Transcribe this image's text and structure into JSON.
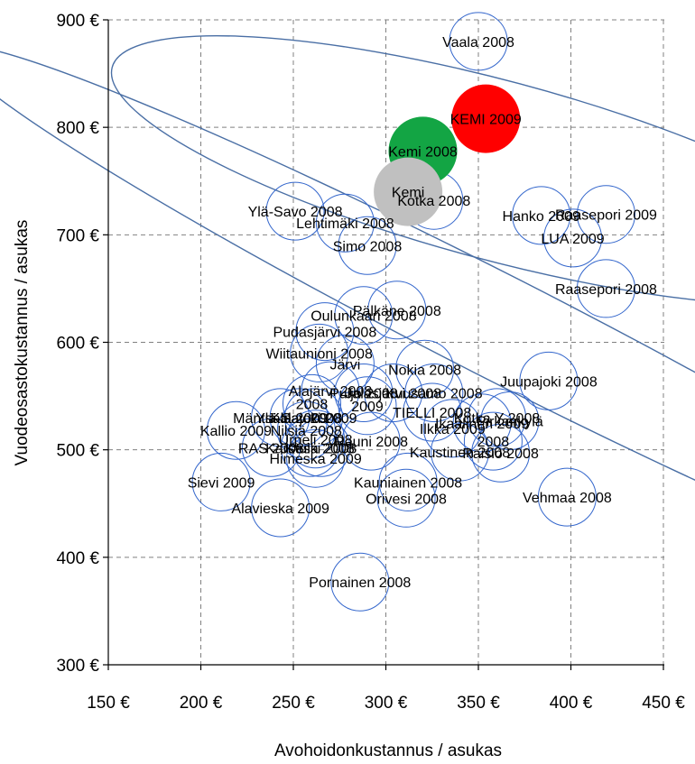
{
  "chart_data": {
    "type": "scatter",
    "title": "",
    "xlabel": "Avohoidonkustannus / asukas",
    "ylabel": "Vuodeosastokustannus / asukas",
    "xlim": [
      150,
      460
    ],
    "ylim": [
      300,
      900
    ],
    "x_ticks": [
      {
        "value": 150,
        "label": "150 €"
      },
      {
        "value": 200,
        "label": "200 €"
      },
      {
        "value": 250,
        "label": "250 €"
      },
      {
        "value": 300,
        "label": "300 €"
      },
      {
        "value": 350,
        "label": "350 €"
      },
      {
        "value": 400,
        "label": "400 €"
      },
      {
        "value": 450,
        "label": "450 €"
      }
    ],
    "y_ticks": [
      {
        "value": 300,
        "label": "300 €"
      },
      {
        "value": 400,
        "label": "400 €"
      },
      {
        "value": 500,
        "label": "500 €"
      },
      {
        "value": 600,
        "label": "600 €"
      },
      {
        "value": 700,
        "label": "700 €"
      },
      {
        "value": 800,
        "label": "800 €"
      },
      {
        "value": 900,
        "label": "900 €"
      }
    ],
    "grid": true,
    "colors": {
      "bubble_stroke": "#3366cc",
      "grid": "#808080",
      "highlight_red": "#ff0000",
      "highlight_green": "#13a544",
      "highlight_gray": "#c0c0c0",
      "ellipse_stroke": "#4a6fa5"
    },
    "ellipses": [
      {
        "cx": 360,
        "cy": 760,
        "rx": 123,
        "ry": 98,
        "rotation": 15
      },
      {
        "cx": 360,
        "cy": 615,
        "rx": 220,
        "ry": 48,
        "rotation": 27
      }
    ],
    "points": [
      {
        "label": "Vaala 2008",
        "x": 350,
        "y": 880
      },
      {
        "label": "Ylä-Savo 2008",
        "x": 251,
        "y": 722
      },
      {
        "label": "Lehtimäki 2008",
        "x": 278,
        "y": 711
      },
      {
        "label": "Simo 2008",
        "x": 290,
        "y": 690
      },
      {
        "label": "Kotka 2008",
        "x": 326,
        "y": 732
      },
      {
        "label": "Hanko 2009",
        "x": 384,
        "y": 718
      },
      {
        "label": "Raasepori 2009",
        "x": 419,
        "y": 719
      },
      {
        "label": "LUA 2009",
        "x": 401,
        "y": 697
      },
      {
        "label": "Raasepori 2008",
        "x": 419,
        "y": 650
      },
      {
        "label": "Pälkäne 2008",
        "x": 306,
        "y": 630
      },
      {
        "label": "Oulunkaari 2008",
        "x": 288,
        "y": 625
      },
      {
        "label": "Pudasjärvi 2008",
        "x": 267,
        "y": 610
      },
      {
        "label": "Wiitaunioni 2008",
        "x": 264,
        "y": 590
      },
      {
        "label": "Järvi",
        "x": 278,
        "y": 580
      },
      {
        "label": "Nokia 2008",
        "x": 321,
        "y": 575
      },
      {
        "label": "Alajärvi 2008",
        "x": 270,
        "y": 555
      },
      {
        "label": "Puijo 2008",
        "x": 288,
        "y": 553
      },
      {
        "label": "Jalasjärvi 2008",
        "x": 304,
        "y": 553
      },
      {
        "label": "Juupajoki 2008",
        "x": 388,
        "y": 564
      },
      {
        "label": "Kuusamo 2008",
        "x": 326,
        "y": 553
      },
      {
        "label": "2008",
        "x": 260,
        "y": 543
      },
      {
        "label": "2009",
        "x": 290,
        "y": 541
      },
      {
        "label": "TIELLI 2008",
        "x": 325,
        "y": 535
      },
      {
        "label": "Mäntsälä 2009",
        "x": 243,
        "y": 530
      },
      {
        "label": "Ylä-Sav 2008",
        "x": 253,
        "y": 530
      },
      {
        "label": "Kalajoki 2009",
        "x": 261,
        "y": 530
      },
      {
        "label": "Ikaalinen 2009",
        "x": 352,
        "y": 525
      },
      {
        "label": "Kotka Y 2008",
        "x": 360,
        "y": 530
      },
      {
        "label": "Pirkankylä",
        "x": 367,
        "y": 527
      },
      {
        "label": "Ilkka 2009",
        "x": 336,
        "y": 520
      },
      {
        "label": "Kallio 2009",
        "x": 219,
        "y": 518
      },
      {
        "label": "Nilsiä 2008",
        "x": 257,
        "y": 518
      },
      {
        "label": "Urpeli 2008",
        "x": 262,
        "y": 510
      },
      {
        "label": "2008",
        "x": 358,
        "y": 508
      },
      {
        "label": "Rauni 2008",
        "x": 292,
        "y": 508
      },
      {
        "label": "RAS 2008",
        "x": 238,
        "y": 502
      },
      {
        "label": "Karstula 2008",
        "x": 259,
        "y": 502
      },
      {
        "label": "Keski 2008",
        "x": 265,
        "y": 502
      },
      {
        "label": "Kaustinen 2008",
        "x": 340,
        "y": 498
      },
      {
        "label": "Raisio 2008",
        "x": 362,
        "y": 497
      },
      {
        "label": "Himeska 2009",
        "x": 262,
        "y": 492
      },
      {
        "label": "Sievi 2009",
        "x": 211,
        "y": 470
      },
      {
        "label": "Kauniainen 2008",
        "x": 312,
        "y": 470
      },
      {
        "label": "Orivesi 2008",
        "x": 311,
        "y": 455
      },
      {
        "label": "Vehmaa 2008",
        "x": 398,
        "y": 456
      },
      {
        "label": "Alavieska 2009",
        "x": 243,
        "y": 446
      },
      {
        "label": "Pornainen 2008",
        "x": 286,
        "y": 377
      },
      {
        "label": "KEMI 2009",
        "x": 354,
        "y": 808,
        "fill": "#ff0000"
      },
      {
        "label": "Kemi 2008",
        "x": 320,
        "y": 778,
        "fill": "#13a544"
      },
      {
        "label": "Kemi",
        "x": 312,
        "y": 740,
        "fill": "#c0c0c0"
      }
    ]
  }
}
